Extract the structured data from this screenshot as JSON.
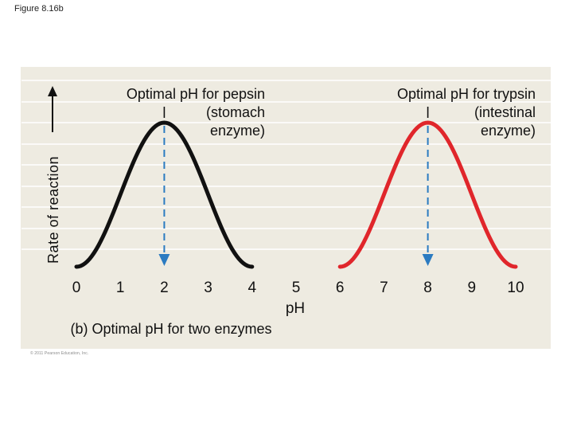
{
  "figure_label": "Figure 8.16b",
  "copyright": "© 2011 Pearson Education, Inc.",
  "colors": {
    "panel_background": "#eeebe1",
    "gridline": "#ffffff",
    "pepsin_curve": "#111111",
    "trypsin_curve": "#e0262b",
    "optimum_marker": "#2b7bc1"
  },
  "chart_data": {
    "type": "line",
    "title": "",
    "caption": "(b) Optimal pH for two enzymes",
    "xlabel": "pH",
    "ylabel": "Rate of reaction",
    "y_axis_arrow": true,
    "xlim": [
      0,
      10
    ],
    "x_ticks": [
      "0",
      "1",
      "2",
      "3",
      "4",
      "5",
      "6",
      "7",
      "8",
      "9",
      "10"
    ],
    "grid": "horizontal lines",
    "series": [
      {
        "name": "pepsin",
        "color": "#111111",
        "x": [
          0,
          0.5,
          1,
          1.5,
          2,
          2.5,
          3,
          3.5,
          4
        ],
        "y": [
          0,
          0.18,
          0.54,
          0.9,
          1.0,
          0.9,
          0.54,
          0.18,
          0
        ],
        "optimum_ph": 2
      },
      {
        "name": "trypsin",
        "color": "#e0262b",
        "x": [
          6,
          6.5,
          7,
          7.5,
          8,
          8.5,
          9,
          9.5,
          10
        ],
        "y": [
          0,
          0.18,
          0.54,
          0.9,
          1.0,
          0.9,
          0.54,
          0.18,
          0
        ],
        "optimum_ph": 8
      }
    ],
    "annotations": [
      {
        "target": "pepsin",
        "lines": [
          "Optimal pH for pepsin",
          "(stomach",
          "enzyme)"
        ]
      },
      {
        "target": "trypsin",
        "lines": [
          "Optimal pH for trypsin",
          "(intestinal",
          "enzyme)"
        ]
      }
    ]
  }
}
